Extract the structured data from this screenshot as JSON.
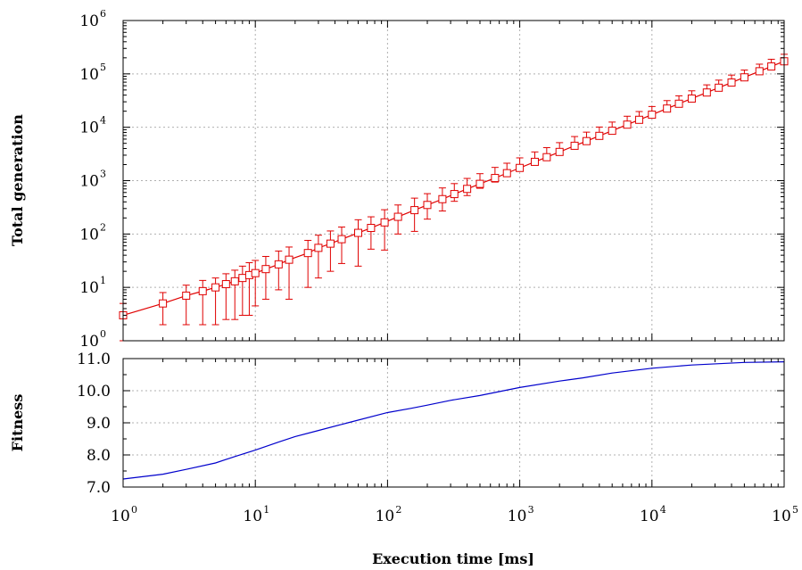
{
  "chart_data": [
    {
      "type": "line",
      "title": "",
      "xlabel": "Execution time [ms]",
      "ylabel": "Total generation",
      "x_scale": "log",
      "y_scale": "log",
      "xlim": [
        1,
        100000
      ],
      "ylim": [
        1,
        1000000
      ],
      "grid": true,
      "color": "#e00000",
      "marker": "open-square",
      "error_bars": true,
      "x_ticks": [
        {
          "base": "10",
          "exp": "0"
        },
        {
          "base": "10",
          "exp": "1"
        },
        {
          "base": "10",
          "exp": "2"
        },
        {
          "base": "10",
          "exp": "3"
        },
        {
          "base": "10",
          "exp": "4"
        },
        {
          "base": "10",
          "exp": "5"
        }
      ],
      "y_ticks": [
        {
          "base": "10",
          "exp": "0"
        },
        {
          "base": "10",
          "exp": "1"
        },
        {
          "base": "10",
          "exp": "2"
        },
        {
          "base": "10",
          "exp": "3"
        },
        {
          "base": "10",
          "exp": "4"
        },
        {
          "base": "10",
          "exp": "5"
        },
        {
          "base": "10",
          "exp": "6"
        }
      ],
      "x": [
        1,
        2,
        3,
        4,
        5,
        6,
        7,
        8,
        9,
        10,
        12,
        15,
        18,
        25,
        30,
        37,
        45,
        60,
        75,
        95,
        120,
        160,
        200,
        260,
        320,
        400,
        500,
        650,
        800,
        1000,
        1300,
        1600,
        2000,
        2600,
        3200,
        4000,
        5000,
        6500,
        8000,
        10000,
        13000,
        16000,
        20000,
        26000,
        32000,
        40000,
        50000,
        65000,
        80000,
        100000
      ],
      "y": [
        3,
        5,
        7,
        8.5,
        10,
        11.5,
        13,
        15,
        17,
        18.5,
        22,
        27,
        33,
        44,
        55,
        66,
        80,
        105,
        130,
        165,
        210,
        280,
        350,
        450,
        560,
        700,
        870,
        1120,
        1380,
        1730,
        2250,
        2750,
        3450,
        4500,
        5500,
        6900,
        8600,
        11200,
        13800,
        17200,
        22400,
        27600,
        34500,
        44800,
        55100,
        68900,
        86100,
        112000,
        138000,
        172000
      ],
      "y_err_low": [
        3,
        3,
        5,
        6.5,
        8,
        9,
        10.5,
        12,
        14,
        14,
        16,
        18,
        27,
        34,
        40,
        46,
        52,
        80,
        78,
        115,
        110,
        168,
        160,
        180,
        150,
        175,
        150,
        180,
        140,
        200,
        200,
        170,
        200,
        300,
        200,
        400,
        430,
        640,
        600,
        750,
        1000,
        900,
        1300,
        1600,
        1900,
        2200,
        2600,
        2500,
        3100,
        4200
      ],
      "y_err_high": [
        5,
        8,
        11,
        13.5,
        15,
        18,
        21,
        25,
        29,
        32,
        38,
        48,
        57,
        76,
        95,
        114,
        135,
        185,
        210,
        285,
        350,
        470,
        570,
        730,
        880,
        1100,
        1350,
        1770,
        2120,
        2670,
        3450,
        4150,
        5150,
        6700,
        8100,
        10100,
        12500,
        16100,
        19700,
        24500,
        31600,
        38800,
        48200,
        62300,
        76400,
        95000,
        118000,
        152000,
        188000,
        233000
      ]
    },
    {
      "type": "line",
      "title": "",
      "xlabel": "Execution time [ms]",
      "ylabel": "Fitness",
      "x_scale": "log",
      "y_scale": "linear",
      "xlim": [
        1,
        100000
      ],
      "ylim": [
        7.0,
        11.0
      ],
      "grid": true,
      "color": "#0000cc",
      "x_ticks": [
        {
          "base": "10",
          "exp": "0"
        },
        {
          "base": "10",
          "exp": "1"
        },
        {
          "base": "10",
          "exp": "2"
        },
        {
          "base": "10",
          "exp": "3"
        },
        {
          "base": "10",
          "exp": "4"
        },
        {
          "base": "10",
          "exp": "5"
        }
      ],
      "y_ticks": [
        "7.0",
        "8.0",
        "9.0",
        "10.0",
        "11.0"
      ],
      "x": [
        1,
        2,
        3,
        5,
        7,
        10,
        15,
        20,
        30,
        50,
        100,
        150,
        200,
        300,
        500,
        1000,
        2000,
        3000,
        5000,
        10000,
        20000,
        50000,
        100000
      ],
      "y": [
        7.25,
        7.4,
        7.55,
        7.75,
        7.95,
        8.15,
        8.4,
        8.57,
        8.76,
        9.0,
        9.32,
        9.45,
        9.55,
        9.7,
        9.85,
        10.1,
        10.3,
        10.4,
        10.55,
        10.7,
        10.8,
        10.88,
        10.9
      ]
    }
  ]
}
